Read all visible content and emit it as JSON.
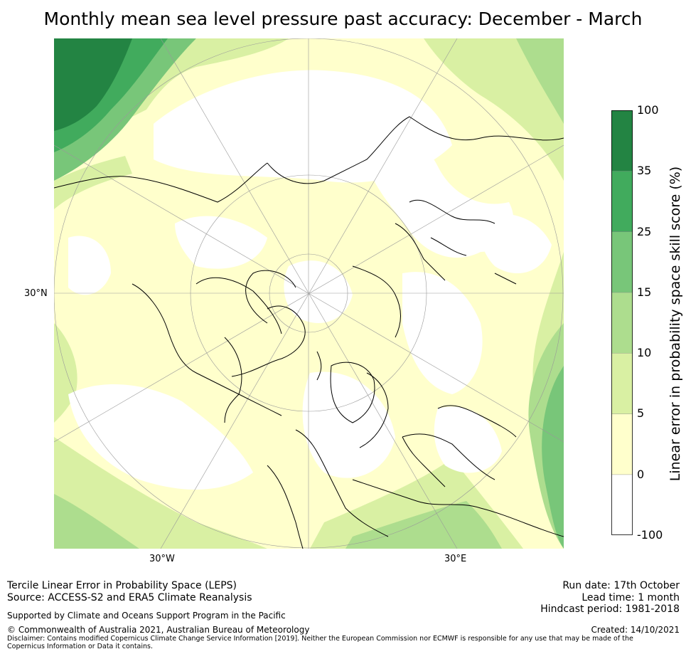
{
  "title": "Monthly mean sea level pressure past accuracy: December - March",
  "map": {
    "projection": "North polar stereographic",
    "graticule_labels": {
      "latitude": "30°N",
      "lon_west": "30°W",
      "lon_east": "30°E"
    },
    "layers": [
      "skill-score-field",
      "coastlines",
      "graticule"
    ]
  },
  "colorbar": {
    "title": "Linear error in probability space skill score (%)",
    "ticks": [
      "100",
      "35",
      "25",
      "15",
      "10",
      "5",
      "0",
      "-100"
    ],
    "bins": [
      {
        "from": "-100",
        "to": "0",
        "color": "#ffffff"
      },
      {
        "from": "0",
        "to": "5",
        "color": "#ffffcc"
      },
      {
        "from": "5",
        "to": "10",
        "color": "#d9f0a3"
      },
      {
        "from": "10",
        "to": "15",
        "color": "#addd8e"
      },
      {
        "from": "15",
        "to": "25",
        "color": "#78c679"
      },
      {
        "from": "25",
        "to": "35",
        "color": "#41ab5d"
      },
      {
        "from": "35",
        "to": "100",
        "color": "#238443"
      }
    ]
  },
  "footer": {
    "left": {
      "line1": "Tercile Linear Error in Probability Space (LEPS)",
      "line2": "Source: ACCESS-S2 and ERA5 Climate Reanalysis",
      "support": "Supported by Climate and Oceans Support Program in the Pacific",
      "copyright": "© Commonwealth of Australia 2021, Australian Bureau of Meteorology",
      "disclaimer": "Disclaimer: Contains modified Copernicus Climate Change Service Information [2019]. Neither the European Commission nor ECMWF is responsible for any use that may be made of the Copernicus Information or Data it contains."
    },
    "right": {
      "run_date": "Run date: 17th October",
      "lead_time": "Lead time: 1 month",
      "hindcast": "Hindcast period: 1981-2018",
      "created": "Created: 14/10/2021"
    }
  }
}
